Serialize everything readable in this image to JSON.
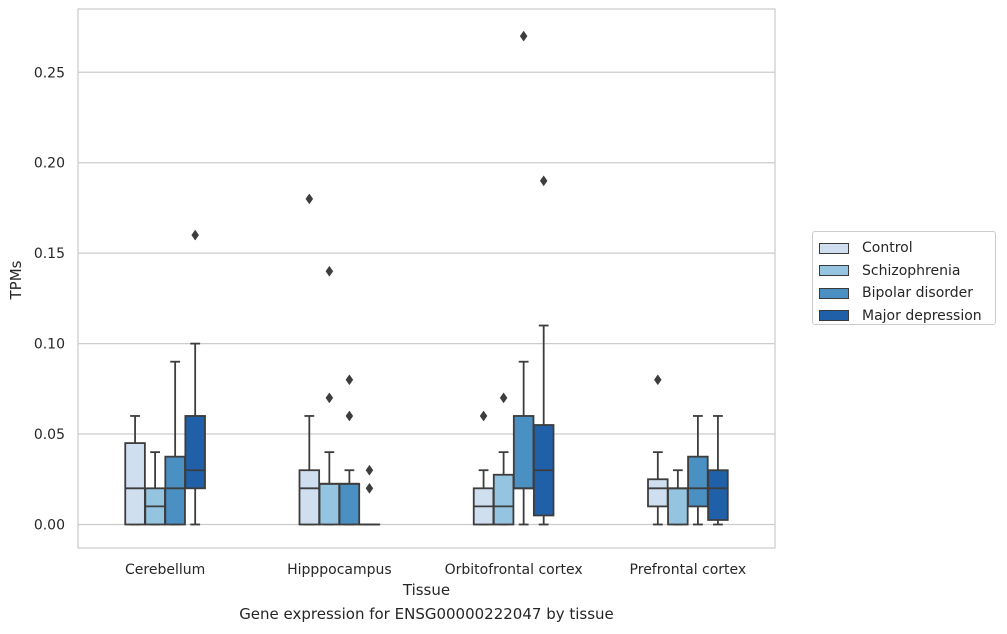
{
  "caption": "Gene expression for ENSG00000222047 by tissue",
  "legend": {
    "items": [
      {
        "label": "Control",
        "color": "#cfdff0"
      },
      {
        "label": "Schizophrenia",
        "color": "#94c4df"
      },
      {
        "label": "Bipolar disorder",
        "color": "#4a90c2"
      },
      {
        "label": "Major depression",
        "color": "#1f60a8"
      }
    ]
  },
  "chart_data": {
    "type": "box",
    "xlabel": "Tissue",
    "ylabel": "TPMs",
    "ylim": [
      -0.013,
      0.285
    ],
    "yticks": [
      0.0,
      0.05,
      0.1,
      0.15,
      0.2,
      0.25
    ],
    "ytick_labels": [
      "0.00",
      "0.05",
      "0.10",
      "0.15",
      "0.20",
      "0.25"
    ],
    "grid": "horizontal",
    "legend_position": "right",
    "categories": [
      "Cerebellum",
      "Hipppocampus",
      "Orbitofrontal cortex",
      "Prefrontal cortex"
    ],
    "series": [
      {
        "name": "Control",
        "color": "#cfdff0",
        "boxes": [
          {
            "whislo": 0.0,
            "q1": 0.0,
            "med": 0.02,
            "q3": 0.045,
            "whishi": 0.06,
            "fliers": []
          },
          {
            "whislo": 0.0,
            "q1": 0.0,
            "med": 0.02,
            "q3": 0.03,
            "whishi": 0.06,
            "fliers": [
              0.18
            ]
          },
          {
            "whislo": 0.0,
            "q1": 0.0,
            "med": 0.01,
            "q3": 0.02,
            "whishi": 0.03,
            "fliers": [
              0.06
            ]
          },
          {
            "whislo": 0.0,
            "q1": 0.01,
            "med": 0.02,
            "q3": 0.025,
            "whishi": 0.04,
            "fliers": [
              0.08
            ]
          }
        ]
      },
      {
        "name": "Schizophrenia",
        "color": "#94c4df",
        "boxes": [
          {
            "whislo": 0.0,
            "q1": 0.0,
            "med": 0.01,
            "q3": 0.02,
            "whishi": 0.04,
            "fliers": []
          },
          {
            "whislo": 0.0,
            "q1": 0.0,
            "med": 0.0225,
            "q3": 0.0225,
            "whishi": 0.04,
            "fliers": [
              0.14,
              0.07
            ]
          },
          {
            "whislo": 0.0,
            "q1": 0.0,
            "med": 0.01,
            "q3": 0.0275,
            "whishi": 0.04,
            "fliers": [
              0.07
            ]
          },
          {
            "whislo": 0.0,
            "q1": 0.0,
            "med": 0.02,
            "q3": 0.02,
            "whishi": 0.03,
            "fliers": []
          }
        ]
      },
      {
        "name": "Bipolar disorder",
        "color": "#4a90c2",
        "boxes": [
          {
            "whislo": 0.0,
            "q1": 0.0,
            "med": 0.02,
            "q3": 0.0375,
            "whishi": 0.09,
            "fliers": []
          },
          {
            "whislo": 0.0,
            "q1": 0.0,
            "med": 0.0225,
            "q3": 0.0225,
            "whishi": 0.03,
            "fliers": [
              0.08,
              0.06
            ]
          },
          {
            "whislo": 0.0,
            "q1": 0.02,
            "med": 0.02,
            "q3": 0.06,
            "whishi": 0.09,
            "fliers": [
              0.27
            ]
          },
          {
            "whislo": 0.0,
            "q1": 0.01,
            "med": 0.02,
            "q3": 0.0375,
            "whishi": 0.06,
            "fliers": []
          }
        ]
      },
      {
        "name": "Major depression",
        "color": "#1f60a8",
        "boxes": [
          {
            "whislo": 0.0,
            "q1": 0.02,
            "med": 0.03,
            "q3": 0.06,
            "whishi": 0.1,
            "fliers": [
              0.16
            ]
          },
          {
            "whislo": 0.0,
            "q1": 0.0,
            "med": 0.0,
            "q3": 0.0,
            "whishi": 0.0,
            "fliers": [
              0.03,
              0.02
            ]
          },
          {
            "whislo": 0.0,
            "q1": 0.005,
            "med": 0.03,
            "q3": 0.055,
            "whishi": 0.11,
            "fliers": [
              0.19
            ]
          },
          {
            "whislo": 0.0,
            "q1": 0.0025,
            "med": 0.02,
            "q3": 0.03,
            "whishi": 0.06,
            "fliers": []
          }
        ]
      }
    ]
  }
}
